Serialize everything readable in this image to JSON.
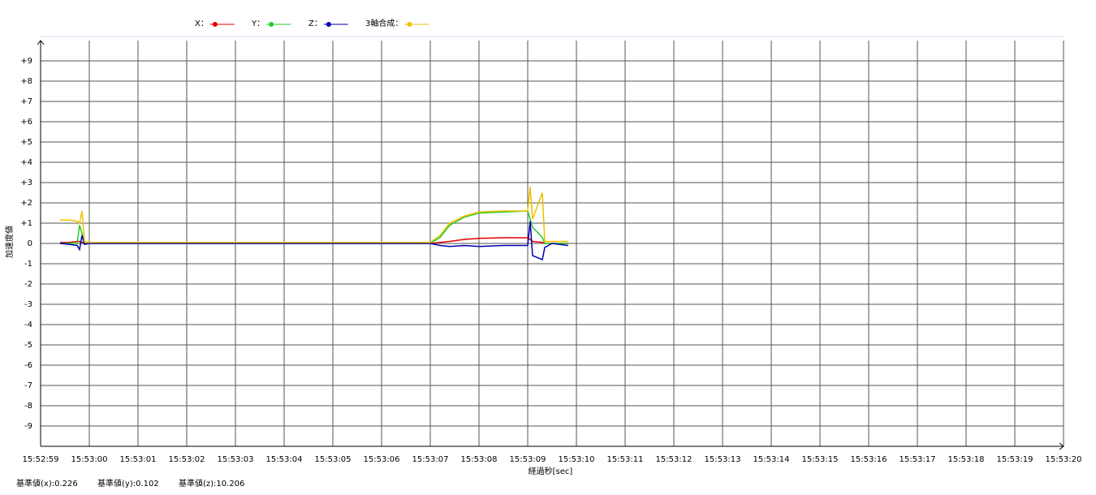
{
  "chart_data": {
    "type": "line",
    "y_label": "加速度値",
    "x_label": "経過秒[sec]",
    "x": [
      0.4,
      0.6,
      0.75,
      0.8,
      0.85,
      0.9,
      1.0,
      2,
      3,
      4,
      5,
      6,
      7,
      8.0,
      8.2,
      8.4,
      8.7,
      9,
      9.5,
      10.0,
      10.05,
      10.1,
      10.3,
      10.35,
      10.5,
      10.83
    ],
    "series": [
      {
        "name": "X：",
        "color": "#e00000",
        "values": [
          0.05,
          0.05,
          0.1,
          0.1,
          0.05,
          0,
          0,
          0,
          0,
          0,
          0,
          0,
          0,
          0,
          0.05,
          0.1,
          0.2,
          0.25,
          0.28,
          0.28,
          0.2,
          0.1,
          0.05,
          0,
          0,
          0
        ]
      },
      {
        "name": "Y：",
        "color": "#22cc22",
        "values": [
          0,
          0,
          0,
          0.9,
          0.5,
          0,
          0,
          0,
          0,
          0,
          0,
          0,
          0,
          0,
          0.3,
          0.9,
          1.3,
          1.5,
          1.55,
          1.6,
          1.2,
          0.8,
          0.3,
          0,
          0,
          0
        ]
      },
      {
        "name": "Z：",
        "color": "#0000b0",
        "values": [
          0,
          -0.05,
          -0.1,
          -0.3,
          0.4,
          -0.05,
          0,
          0,
          0,
          0,
          0,
          0,
          0,
          0,
          -0.1,
          -0.15,
          -0.1,
          -0.15,
          -0.1,
          -0.1,
          1.1,
          -0.6,
          -0.8,
          -0.2,
          0,
          -0.1
        ]
      },
      {
        "name": "3軸合成：",
        "color": "#f0c000",
        "values": [
          1.15,
          1.15,
          1.1,
          1.0,
          1.6,
          0.1,
          0.05,
          0.05,
          0.05,
          0.05,
          0.05,
          0.05,
          0.05,
          0.05,
          0.4,
          1.0,
          1.35,
          1.55,
          1.6,
          1.6,
          2.8,
          1.2,
          2.5,
          0.1,
          0.1,
          0.1
        ]
      }
    ],
    "xlim": [
      0,
      21
    ],
    "xticks": [
      {
        "value": 0,
        "label": "15:52:59"
      },
      {
        "value": 1,
        "label": "15:53:00"
      },
      {
        "value": 2,
        "label": "15:53:01"
      },
      {
        "value": 3,
        "label": "15:53:02"
      },
      {
        "value": 4,
        "label": "15:53:03"
      },
      {
        "value": 5,
        "label": "15:53:04"
      },
      {
        "value": 6,
        "label": "15:53:05"
      },
      {
        "value": 7,
        "label": "15:53:06"
      },
      {
        "value": 8,
        "label": "15:53:07"
      },
      {
        "value": 9,
        "label": "15:53:08"
      },
      {
        "value": 10,
        "label": "15:53:09"
      },
      {
        "value": 11,
        "label": "15:53:10"
      },
      {
        "value": 12,
        "label": "15:53:11"
      },
      {
        "value": 13,
        "label": "15:53:12"
      },
      {
        "value": 14,
        "label": "15:53:13"
      },
      {
        "value": 15,
        "label": "15:53:14"
      },
      {
        "value": 16,
        "label": "15:53:15"
      },
      {
        "value": 17,
        "label": "15:53:16"
      },
      {
        "value": 18,
        "label": "15:53:17"
      },
      {
        "value": 19,
        "label": "15:53:18"
      },
      {
        "value": 20,
        "label": "15:53:19"
      },
      {
        "value": 21,
        "label": "15:53:20"
      }
    ],
    "ylim": [
      -10,
      10
    ],
    "yticks": [
      {
        "value": 9,
        "label": "+9"
      },
      {
        "value": 8,
        "label": "+8"
      },
      {
        "value": 7,
        "label": "+7"
      },
      {
        "value": 6,
        "label": "+6"
      },
      {
        "value": 5,
        "label": "+5"
      },
      {
        "value": 4,
        "label": "+4"
      },
      {
        "value": 3,
        "label": "+3"
      },
      {
        "value": 2,
        "label": "+2"
      },
      {
        "value": 1,
        "label": "+1"
      },
      0,
      -1,
      -2,
      -3,
      -4,
      -5,
      -6,
      -7,
      -8,
      -9
    ],
    "grid": true,
    "footer": [
      "基準値(x):0.226",
      "基準値(y):0.102",
      "基準値(z):10.206"
    ]
  }
}
